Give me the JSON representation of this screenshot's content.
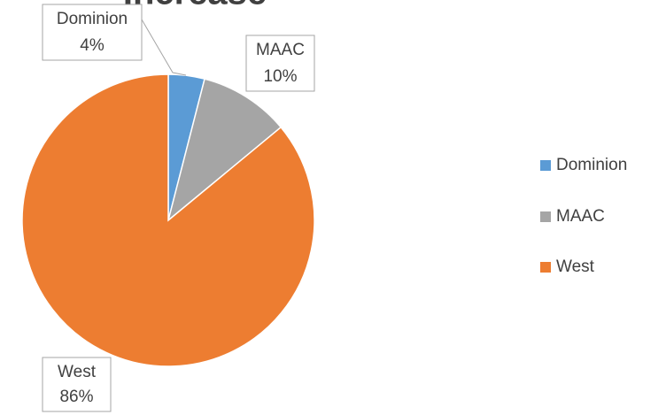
{
  "chart_data": {
    "type": "pie",
    "title": "Increase",
    "categories": [
      "Dominion",
      "MAAC",
      "West"
    ],
    "values": [
      4,
      10,
      86
    ],
    "value_labels": [
      "4%",
      "10%",
      "86%"
    ],
    "colors": [
      "#5b9bd5",
      "#a5a5a5",
      "#ed7d31"
    ],
    "legend": "right"
  }
}
